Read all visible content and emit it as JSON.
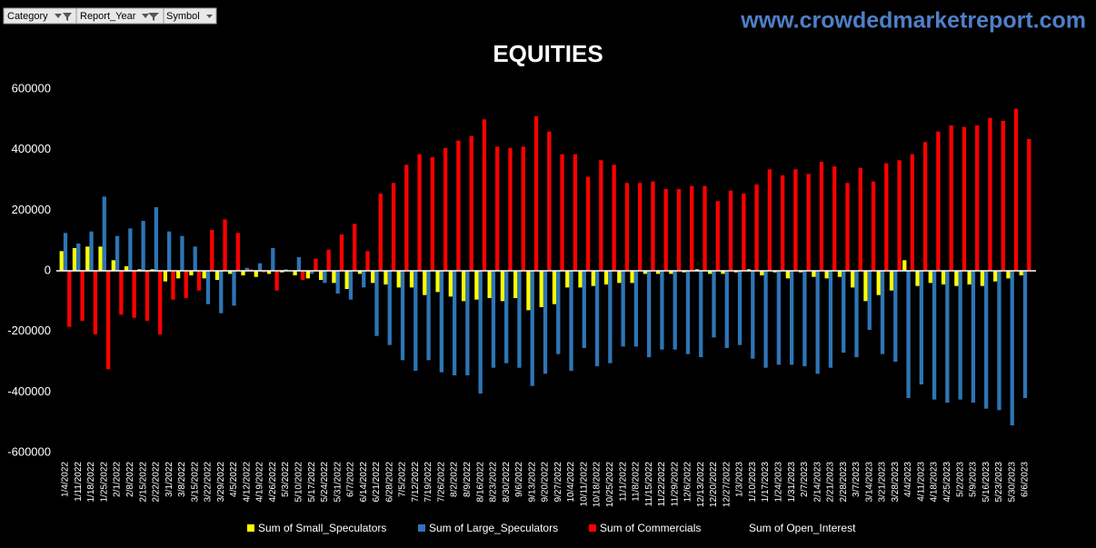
{
  "filters": [
    "Category",
    "Report_Year",
    "Symbol"
  ],
  "watermark": "www.crowdedmarketreport.com",
  "chart_data": {
    "type": "bar",
    "title": "EQUITIES",
    "categories": [
      "1/4/2022",
      "1/11/2022",
      "1/18/2022",
      "1/25/2022",
      "2/1/2022",
      "2/8/2022",
      "2/15/2022",
      "2/22/2022",
      "3/1/2022",
      "3/8/2022",
      "3/15/2022",
      "3/22/2022",
      "3/29/2022",
      "4/5/2022",
      "4/12/2022",
      "4/19/2022",
      "4/26/2022",
      "5/3/2022",
      "5/10/2022",
      "5/17/2022",
      "5/24/2022",
      "5/31/2022",
      "6/7/2022",
      "6/14/2022",
      "6/21/2022",
      "6/28/2022",
      "7/5/2022",
      "7/12/2022",
      "7/19/2022",
      "7/26/2022",
      "8/2/2022",
      "8/9/2022",
      "8/16/2022",
      "8/23/2022",
      "8/30/2022",
      "9/6/2022",
      "9/13/2022",
      "9/20/2022",
      "9/27/2022",
      "10/4/2022",
      "10/11/2022",
      "10/18/2022",
      "10/25/2022",
      "11/1/2022",
      "11/8/2022",
      "11/15/2022",
      "11/22/2022",
      "11/29/2022",
      "12/6/2022",
      "12/13/2022",
      "12/20/2022",
      "12/27/2022",
      "1/3/2023",
      "1/10/2023",
      "1/17/2023",
      "1/24/2023",
      "1/31/2023",
      "2/7/2023",
      "2/14/2023",
      "2/21/2023",
      "2/28/2023",
      "3/7/2023",
      "3/14/2023",
      "3/21/2023",
      "3/28/2023",
      "4/4/2023",
      "4/11/2023",
      "4/18/2023",
      "4/25/2023",
      "5/2/2023",
      "5/9/2023",
      "5/16/2023",
      "5/23/2023",
      "5/30/2023",
      "6/6/2023"
    ],
    "series": [
      {
        "name": "Sum of Small_Speculators",
        "color": "#ffff00",
        "values": [
          65000,
          75000,
          80000,
          80000,
          35000,
          15000,
          5000,
          5000,
          -35000,
          -25000,
          -15000,
          -25000,
          -30000,
          -10000,
          -15000,
          -20000,
          -10000,
          -5000,
          -15000,
          -25000,
          -30000,
          -40000,
          -60000,
          -10000,
          -40000,
          -45000,
          -55000,
          -55000,
          -80000,
          -70000,
          -85000,
          -100000,
          -95000,
          -90000,
          -100000,
          -90000,
          -130000,
          -120000,
          -110000,
          -55000,
          -55000,
          -50000,
          -45000,
          -40000,
          -40000,
          -10000,
          -10000,
          -10000,
          -5000,
          5000,
          -10000,
          -10000,
          -5000,
          5000,
          -15000,
          -5000,
          -25000,
          -5000,
          -20000,
          -25000,
          -20000,
          -55000,
          -100000,
          -80000,
          -65000,
          35000,
          -50000,
          -40000,
          -45000,
          -50000,
          -45000,
          -50000,
          -35000,
          -25000,
          -15000
        ]
      },
      {
        "name": "Sum of Large_Speculators",
        "color": "#2e75b6",
        "values": [
          125000,
          90000,
          130000,
          245000,
          115000,
          140000,
          165000,
          210000,
          130000,
          115000,
          80000,
          -110000,
          -140000,
          -115000,
          10000,
          25000,
          75000,
          5000,
          45000,
          -10000,
          -40000,
          -75000,
          -95000,
          -55000,
          -215000,
          -245000,
          -295000,
          -330000,
          -295000,
          -335000,
          -345000,
          -345000,
          -405000,
          -320000,
          -305000,
          -320000,
          -380000,
          -340000,
          -275000,
          -330000,
          -255000,
          -315000,
          -305000,
          -250000,
          -250000,
          -285000,
          -260000,
          -260000,
          -275000,
          -285000,
          -220000,
          -255000,
          -245000,
          -290000,
          -320000,
          -310000,
          -310000,
          -315000,
          -340000,
          -320000,
          -270000,
          -285000,
          -195000,
          -275000,
          -300000,
          -420000,
          -375000,
          -425000,
          -435000,
          -425000,
          -435000,
          -455000,
          -460000,
          -510000,
          -420000
        ]
      },
      {
        "name": "Sum of Commercials",
        "color": "#ff0000",
        "values": [
          -185000,
          -165000,
          -210000,
          -325000,
          -145000,
          -155000,
          -165000,
          -210000,
          -95000,
          -90000,
          -65000,
          135000,
          170000,
          125000,
          5000,
          -5000,
          -65000,
          0,
          -30000,
          40000,
          70000,
          120000,
          155000,
          65000,
          255000,
          290000,
          350000,
          385000,
          375000,
          405000,
          430000,
          445000,
          500000,
          410000,
          405000,
          410000,
          510000,
          460000,
          385000,
          385000,
          310000,
          365000,
          350000,
          290000,
          290000,
          295000,
          270000,
          270000,
          280000,
          280000,
          230000,
          265000,
          255000,
          285000,
          335000,
          315000,
          335000,
          320000,
          360000,
          345000,
          290000,
          340000,
          295000,
          355000,
          365000,
          385000,
          425000,
          460000,
          480000,
          475000,
          480000,
          505000,
          495000,
          535000,
          435000
        ]
      },
      {
        "name": "Sum of Open_Interest",
        "values": [
          null,
          null,
          null,
          null,
          null,
          null,
          null,
          null,
          null,
          null,
          null,
          null,
          null,
          null,
          null,
          null,
          null,
          null,
          null,
          null,
          null,
          null,
          null,
          null,
          null,
          null,
          null,
          null,
          null,
          null,
          null,
          null,
          null,
          null,
          null,
          null,
          null,
          null,
          null,
          null,
          null,
          null,
          null,
          null,
          null,
          null,
          null,
          null,
          null,
          null,
          null,
          null,
          null,
          null,
          null,
          null,
          null,
          null,
          null,
          null,
          null,
          null,
          null,
          null,
          null,
          null,
          null,
          null,
          null,
          null,
          null,
          null,
          null,
          null,
          null
        ]
      }
    ],
    "ylim": [
      -600000,
      600000
    ],
    "yticks": [
      -600000,
      -400000,
      -200000,
      0,
      200000,
      400000,
      600000
    ],
    "grid": false
  }
}
